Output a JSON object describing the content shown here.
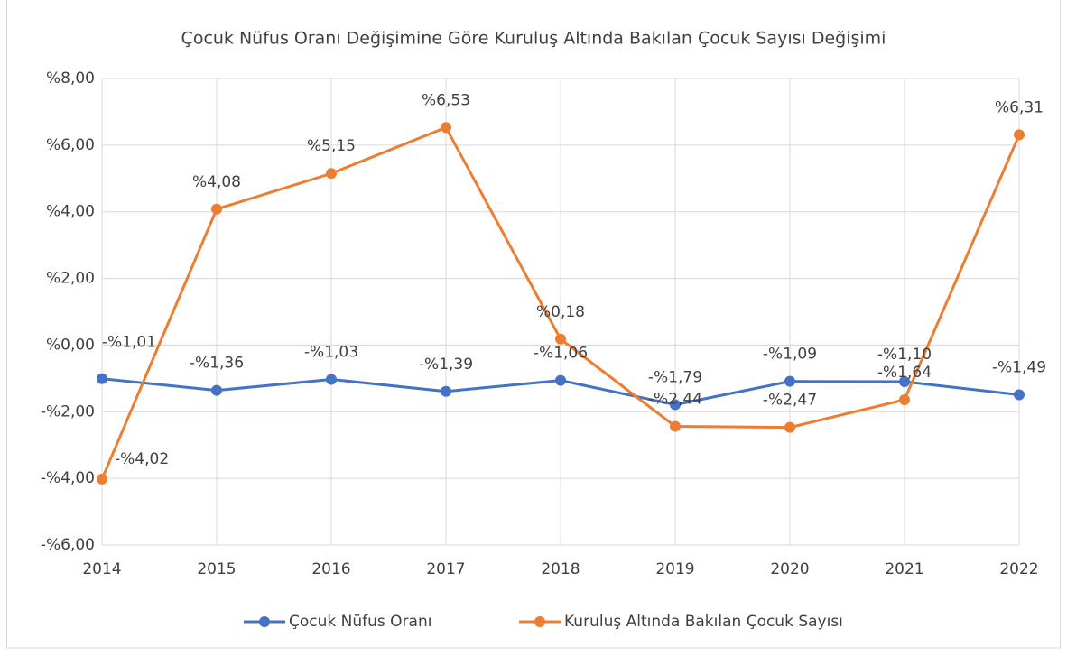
{
  "chart_data": {
    "type": "line",
    "title": "Çocuk Nüfus Oranı Değişimine Göre Kuruluş Altında Bakılan Çocuk Sayısı Değişimi",
    "categories": [
      "2014",
      "2015",
      "2016",
      "2017",
      "2018",
      "2019",
      "2020",
      "2021",
      "2022"
    ],
    "series": [
      {
        "name": "Çocuk Nüfus Oranı",
        "color": "#4472c4",
        "values": [
          -1.01,
          -1.36,
          -1.03,
          -1.39,
          -1.06,
          -1.79,
          -1.09,
          -1.1,
          -1.49
        ],
        "value_labels": [
          "-%1,01",
          "-%1,36",
          "-%1,03",
          "-%1,39",
          "-%1,06",
          "-%1,79",
          "-%1,09",
          "-%1,10",
          "-%1,49"
        ]
      },
      {
        "name": "Kuruluş Altında Bakılan Çocuk Sayısı",
        "color": "#ed7d31",
        "values": [
          -4.02,
          4.08,
          5.15,
          6.53,
          0.18,
          -2.44,
          -2.47,
          -1.64,
          6.31
        ],
        "value_labels": [
          "-%4,02",
          "%4,08",
          "%5,15",
          "%6,53",
          "%0,18",
          "-%2,44",
          "-%2,47",
          "-%1,64",
          "%6,31"
        ]
      }
    ],
    "ylim": [
      -6,
      8
    ],
    "yticks": [
      {
        "value": -6,
        "label": "-%6,00"
      },
      {
        "value": -4,
        "label": "-%4,00"
      },
      {
        "value": -2,
        "label": "-%2,00"
      },
      {
        "value": 0,
        "label": "%0,00"
      },
      {
        "value": 2,
        "label": "%2,00"
      },
      {
        "value": 4,
        "label": "%4,00"
      },
      {
        "value": 6,
        "label": "%6,00"
      },
      {
        "value": 8,
        "label": "%8,00"
      }
    ],
    "grid": true,
    "legend": "bottom"
  }
}
